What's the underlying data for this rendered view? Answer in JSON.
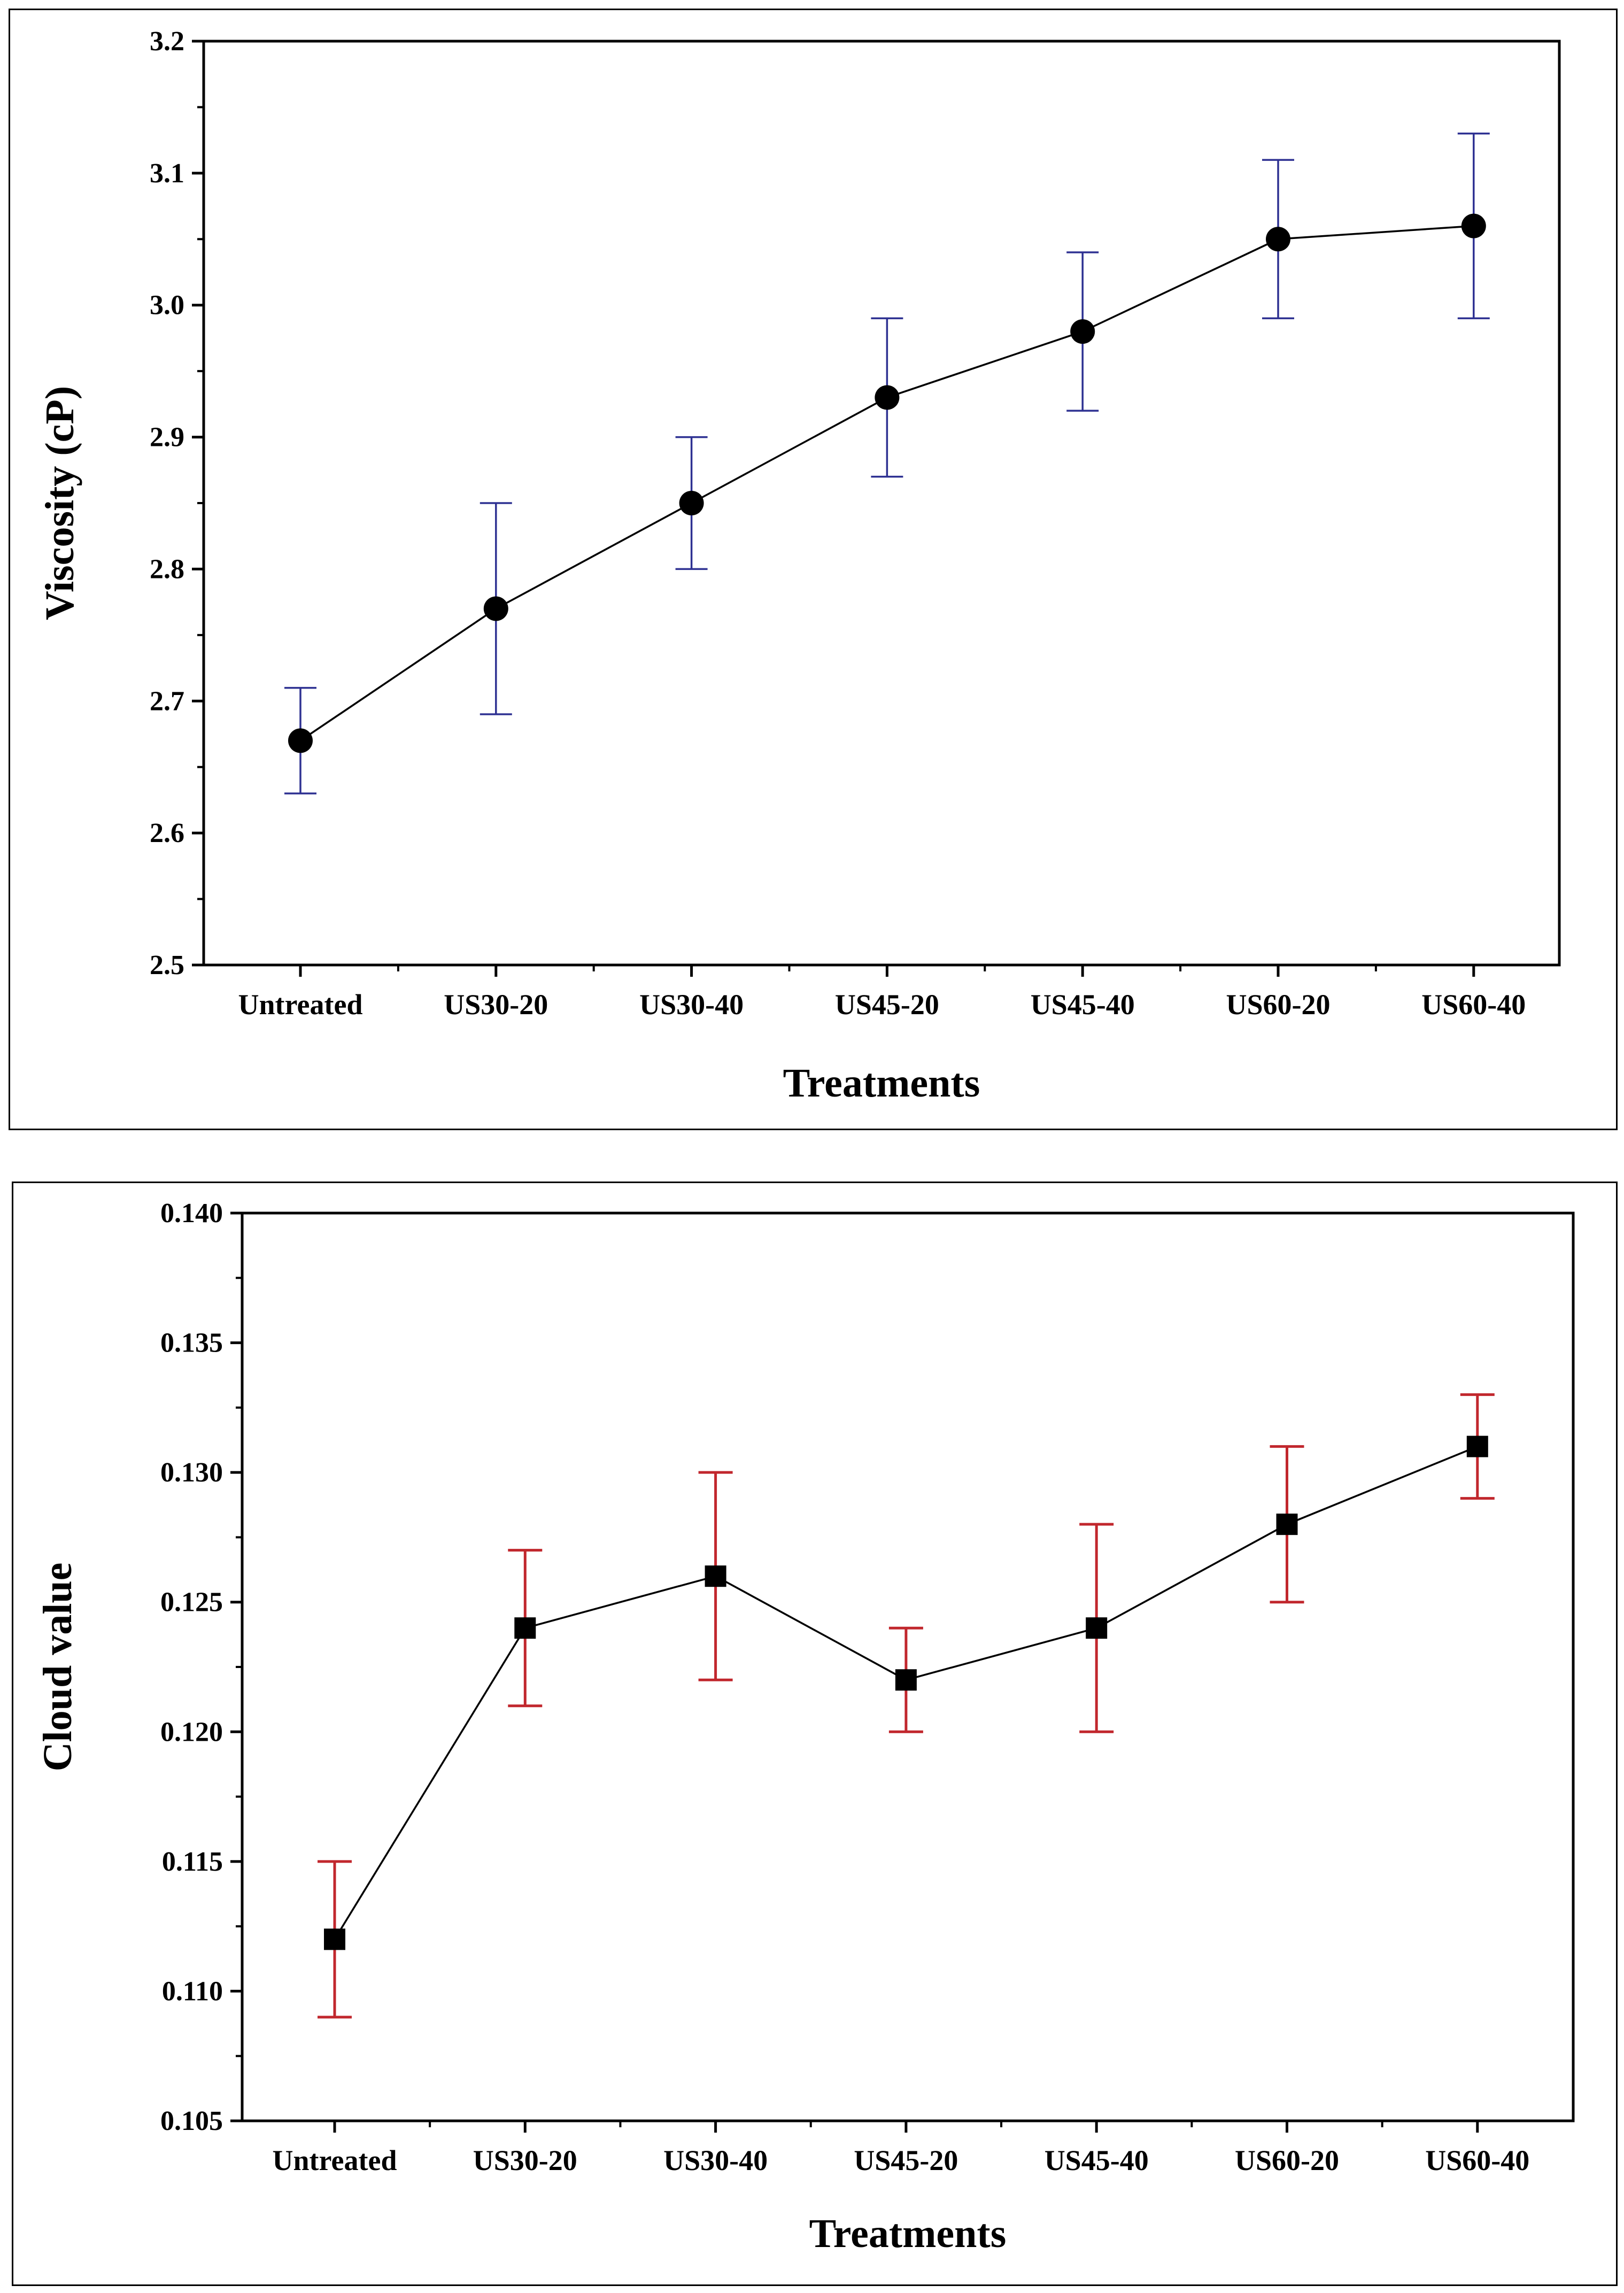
{
  "chart_data": [
    {
      "type": "line",
      "title": "",
      "xlabel": "Treatments",
      "ylabel": "Viscosity (cP)",
      "ylim": [
        2.5,
        3.2
      ],
      "yticks": [
        "2.5",
        "2.6",
        "2.7",
        "2.8",
        "2.9",
        "3.0",
        "3.1",
        "3.2"
      ],
      "ytick_values": [
        2.5,
        2.6,
        2.7,
        2.8,
        2.9,
        3.0,
        3.1,
        3.2
      ],
      "categories": [
        "Untreated",
        "US30-20",
        "US30-40",
        "US45-20",
        "US45-40",
        "US60-20",
        "US60-40"
      ],
      "values": [
        2.67,
        2.77,
        2.85,
        2.93,
        2.98,
        3.05,
        3.06
      ],
      "error_low": [
        2.63,
        2.69,
        2.8,
        2.87,
        2.92,
        2.99,
        2.99
      ],
      "error_high": [
        2.71,
        2.85,
        2.9,
        2.99,
        3.04,
        3.11,
        3.13
      ],
      "marker": "circle",
      "error_color": "#2e3192",
      "line_color": "#000000",
      "grid": false
    },
    {
      "type": "line",
      "title": "",
      "xlabel": "Treatments",
      "ylabel": "Cloud value",
      "ylim": [
        0.105,
        0.14
      ],
      "yticks": [
        "0.105",
        "0.110",
        "0.115",
        "0.120",
        "0.125",
        "0.130",
        "0.135",
        "0.140"
      ],
      "ytick_values": [
        0.105,
        0.11,
        0.115,
        0.12,
        0.125,
        0.13,
        0.135,
        0.14
      ],
      "categories": [
        "Untreated",
        "US30-20",
        "US30-40",
        "US45-20",
        "US45-40",
        "US60-20",
        "US60-40"
      ],
      "values": [
        0.112,
        0.124,
        0.126,
        0.122,
        0.124,
        0.128,
        0.131
      ],
      "error_low": [
        0.109,
        0.121,
        0.122,
        0.12,
        0.12,
        0.125,
        0.129
      ],
      "error_high": [
        0.115,
        0.127,
        0.13,
        0.124,
        0.128,
        0.131,
        0.133
      ],
      "marker": "square",
      "error_color": "#c1272d",
      "line_color": "#000000",
      "grid": false
    }
  ]
}
